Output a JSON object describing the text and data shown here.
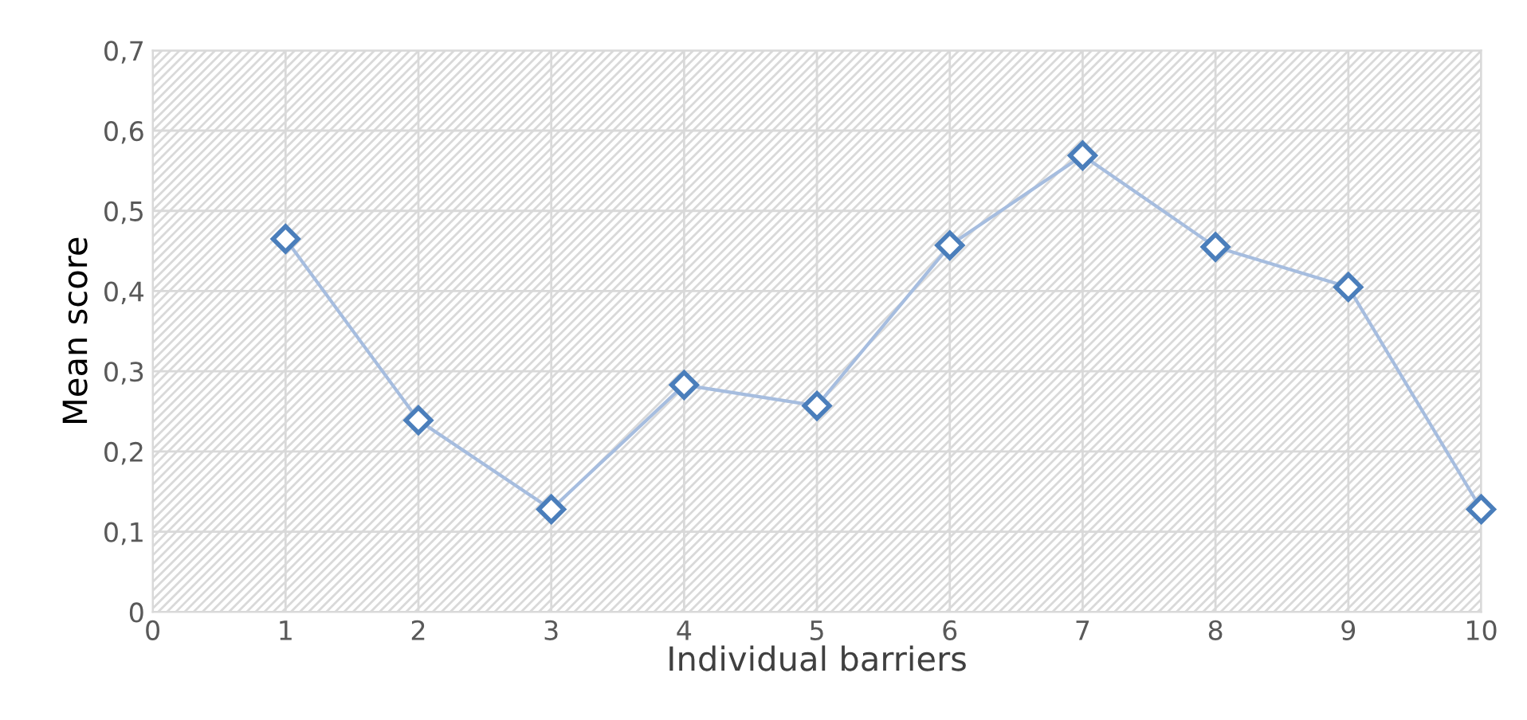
{
  "chart_data": {
    "type": "line",
    "xlabel": "Individual barriers",
    "ylabel": "Mean score",
    "x": [
      1,
      2,
      3,
      4,
      5,
      6,
      7,
      8,
      9,
      10
    ],
    "series": [
      {
        "color": "#4a7ebb",
        "values": [
          0.465,
          0.239,
          0.128,
          0.283,
          0.257,
          0.457,
          0.569,
          0.455,
          0.405,
          0.128
        ]
      }
    ],
    "xlim": [
      0,
      10
    ],
    "xticks": [
      0,
      1,
      2,
      3,
      4,
      5,
      6,
      7,
      8,
      9,
      10
    ],
    "ylim": [
      0,
      0.7
    ],
    "yticks": [
      0,
      {
        "value": 0.1,
        "label": "0,1"
      },
      {
        "value": 0.2,
        "label": "0,2"
      },
      {
        "value": 0.3,
        "label": "0,3"
      },
      {
        "value": 0.4,
        "label": "0,4"
      },
      {
        "value": 0.5,
        "label": "0,5"
      },
      {
        "value": 0.6,
        "label": "0,6"
      },
      {
        "value": 0.7,
        "label": "0,7"
      }
    ],
    "grid": true,
    "marker": "diamond",
    "line_style": "solid"
  }
}
